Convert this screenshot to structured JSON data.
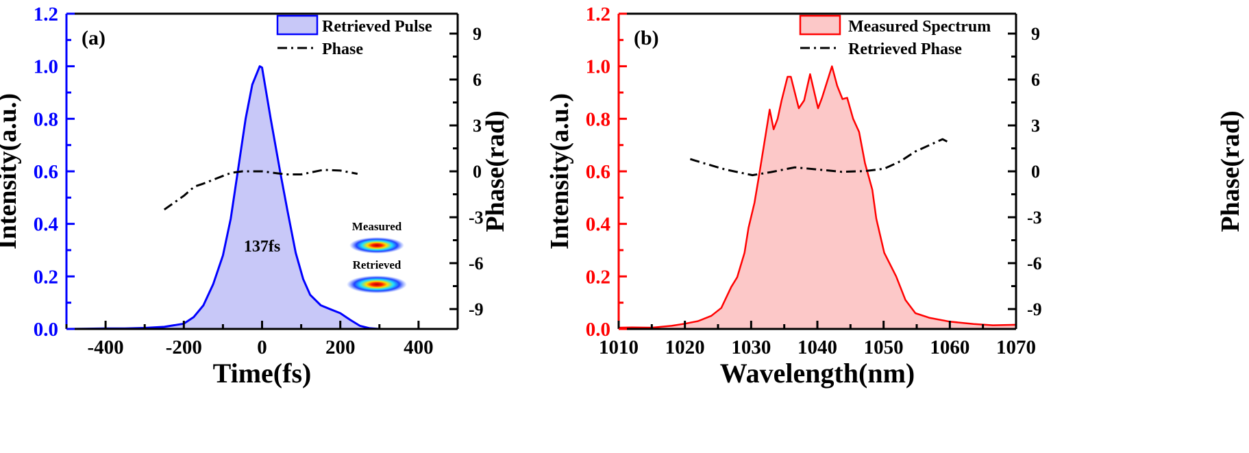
{
  "chart_data": [
    {
      "panel_label": "(a)",
      "type": "area",
      "xlabel": "Time(fs)",
      "ylabel": "Intensity(a.u.)",
      "y2label": "Phase(rad)",
      "xlim": [
        -500,
        500
      ],
      "ylim": [
        0,
        1.2
      ],
      "y2lim": [
        -10.3,
        10.3
      ],
      "xticks": [
        -400,
        -200,
        0,
        200,
        400
      ],
      "yticks": [
        "0.0",
        "0.2",
        "0.4",
        "0.6",
        "0.8",
        "1.0",
        "1.2"
      ],
      "y2ticks": [
        -9,
        -6,
        -3,
        0,
        3,
        6,
        9
      ],
      "axis_color": "#0000ff",
      "annotation": "137fs",
      "legend_placement": "top-right",
      "inset_labels": [
        "Measured",
        "Retrieved"
      ],
      "series": [
        {
          "name": "Retrieved Pulse",
          "axis": "left",
          "color": "#0000ff",
          "fill": "#c8c8f8",
          "x": [
            -500,
            -400,
            -350,
            -300,
            -250,
            -200,
            -175,
            -150,
            -125,
            -100,
            -80,
            -62,
            -42,
            -25,
            -6,
            0,
            22,
            46,
            65,
            86,
            105,
            123,
            150,
            175,
            200,
            225,
            250,
            275,
            300,
            400,
            500
          ],
          "y": [
            0,
            0.002,
            0.002,
            0.004,
            0.008,
            0.02,
            0.045,
            0.09,
            0.17,
            0.28,
            0.42,
            0.6,
            0.8,
            0.93,
            1.0,
            0.995,
            0.8,
            0.6,
            0.45,
            0.29,
            0.19,
            0.13,
            0.09,
            0.075,
            0.06,
            0.035,
            0.012,
            0.003,
            0,
            0,
            0
          ]
        },
        {
          "name": "Phase",
          "axis": "right",
          "color": "#000000",
          "style": "dash-dot",
          "x": [
            -250,
            -200,
            -173,
            -150,
            -100,
            -79,
            -50,
            0,
            30,
            62,
            100,
            157,
            200,
            244
          ],
          "y": [
            -2.5,
            -1.6,
            -1.0,
            -0.8,
            -0.3,
            -0.1,
            0.0,
            0.0,
            -0.1,
            -0.2,
            -0.2,
            0.1,
            0.05,
            -0.16
          ]
        }
      ]
    },
    {
      "panel_label": "(b)",
      "type": "area",
      "xlabel": "Wavelength(nm)",
      "ylabel": "Intensity(a.u.)",
      "y2label": "Phase(rad)",
      "xlim": [
        1010,
        1070
      ],
      "ylim": [
        0,
        1.2
      ],
      "y2lim": [
        -10.3,
        10.3
      ],
      "xticks": [
        1010,
        1020,
        1030,
        1040,
        1050,
        1060,
        1070
      ],
      "yticks": [
        "0.0",
        "0.2",
        "0.4",
        "0.6",
        "0.8",
        "1.0",
        "1.2"
      ],
      "y2ticks": [
        -9,
        -6,
        -3,
        0,
        3,
        6,
        9
      ],
      "axis_color": "#ff0000",
      "legend_placement": "top-right",
      "series": [
        {
          "name": "Measured Spectrum",
          "axis": "left",
          "color": "#ff0000",
          "fill": "#fcc8c8",
          "x": [
            1010,
            1012,
            1015,
            1018,
            1020,
            1022,
            1024,
            1025.5,
            1027,
            1027.9,
            1029,
            1029.6,
            1030.5,
            1031.1,
            1032,
            1032.8,
            1033.4,
            1034,
            1034.6,
            1035.5,
            1036,
            1037.2,
            1038,
            1038.9,
            1040.1,
            1040.7,
            1042.2,
            1043,
            1043.8,
            1044.5,
            1045.4,
            1046.3,
            1047.2,
            1048.3,
            1048.9,
            1050.1,
            1051.9,
            1053.3,
            1054.8,
            1057,
            1060,
            1063.6,
            1066.5,
            1070
          ],
          "y": [
            0.005,
            0.006,
            0.005,
            0.012,
            0.02,
            0.03,
            0.05,
            0.08,
            0.16,
            0.197,
            0.29,
            0.385,
            0.48,
            0.57,
            0.71,
            0.835,
            0.76,
            0.8,
            0.87,
            0.96,
            0.96,
            0.84,
            0.87,
            0.97,
            0.84,
            0.88,
            1.0,
            0.925,
            0.875,
            0.88,
            0.8,
            0.75,
            0.63,
            0.53,
            0.42,
            0.29,
            0.2,
            0.11,
            0.06,
            0.042,
            0.028,
            0.019,
            0.014,
            0.016
          ]
        },
        {
          "name": "Retrieved Phase",
          "axis": "right",
          "color": "#000000",
          "style": "dash-dot",
          "x": [
            1020.8,
            1023.5,
            1026.1,
            1030.2,
            1033,
            1036.6,
            1040,
            1043.7,
            1047.2,
            1050.1,
            1052.5,
            1054.8,
            1058.9,
            1059.8
          ],
          "y": [
            0.8,
            0.45,
            0.12,
            -0.25,
            -0.05,
            0.26,
            0.12,
            -0.03,
            0.02,
            0.17,
            0.65,
            1.3,
            2.1,
            1.9
          ]
        }
      ]
    }
  ]
}
